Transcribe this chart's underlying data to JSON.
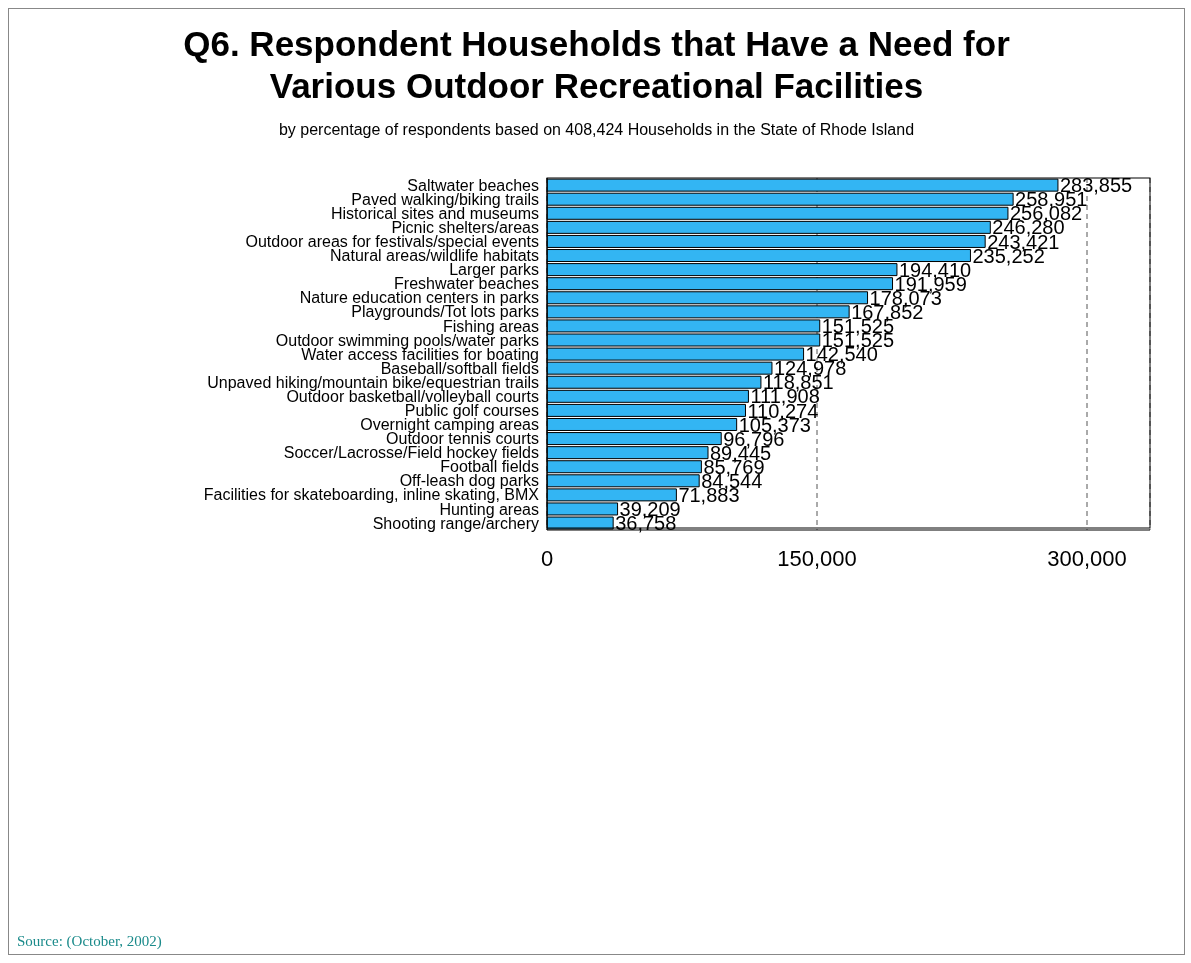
{
  "chart_data": {
    "type": "bar",
    "orientation": "horizontal",
    "title": "Q6. Respondent Households that Have a Need for Various Outdoor Recreational Facilities",
    "subtitle": "by percentage of respondents based on 408,424 Households in the State of Rhode Island",
    "categories": [
      "Saltwater beaches",
      "Paved walking/biking trails",
      "Historical sites and museums",
      "Picnic shelters/areas",
      "Outdoor areas for festivals/special events",
      "Natural areas/wildlife habitats",
      "Larger parks",
      "Freshwater beaches",
      "Nature education centers in parks",
      "Playgrounds/Tot lots parks",
      "Fishing areas",
      "Outdoor swimming pools/water parks",
      "Water access facilities for boating",
      "Baseball/softball fields",
      "Unpaved hiking/mountain bike/equestrian trails",
      "Outdoor basketball/volleyball courts",
      "Public golf courses",
      "Overnight camping areas",
      "Outdoor tennis courts",
      "Soccer/Lacrosse/Field hockey fields",
      "Football fields",
      "Off-leash dog parks",
      "Facilities for skateboarding, inline skating, BMX",
      "Hunting areas",
      "Shooting range/archery"
    ],
    "values": [
      283855,
      258951,
      256082,
      246280,
      243421,
      235252,
      194410,
      191959,
      178073,
      167852,
      151525,
      151525,
      142540,
      124978,
      118851,
      111908,
      110274,
      105373,
      96796,
      89445,
      85769,
      84544,
      71883,
      39209,
      36758
    ],
    "value_labels": [
      "283,855",
      "258,951",
      "256,082",
      "246,280",
      "243,421",
      "235,252",
      "194,410",
      "191,959",
      "178,073",
      "167,852",
      "151,525",
      "151,525",
      "142,540",
      "124,978",
      "118,851",
      "111,908",
      "110,274",
      "105,373",
      "96,796",
      "89,445",
      "85,769",
      "84,544",
      "71,883",
      "39,209",
      "36,758"
    ],
    "color": "#33b5f3",
    "xlim": [
      0,
      335000
    ],
    "xticks": [
      0,
      {
        "value": 150000,
        "label": "150,000"
      },
      {
        "value": 300000,
        "label": "300,000"
      }
    ],
    "grid": "x",
    "annotations": [
      "Source: (October, 2002)"
    ]
  }
}
